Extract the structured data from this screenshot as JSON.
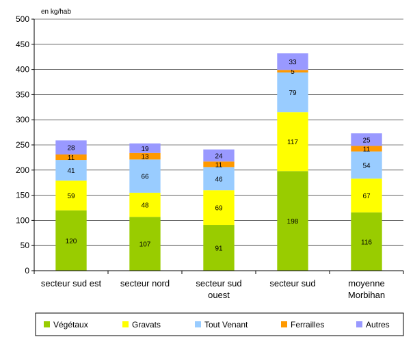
{
  "chart_data": {
    "type": "bar",
    "stacked": true,
    "unit_label": "en kg/hab",
    "categories": [
      [
        "secteur sud est"
      ],
      [
        "secteur nord"
      ],
      [
        "secteur sud",
        "ouest"
      ],
      [
        "secteur sud"
      ],
      [
        "moyenne",
        "Morbihan"
      ]
    ],
    "ylim": [
      0,
      500
    ],
    "yticks": [
      0,
      50,
      100,
      150,
      200,
      250,
      300,
      350,
      400,
      450,
      500
    ],
    "grid": true,
    "legend_position": "bottom",
    "series": [
      {
        "name": "Végétaux",
        "color": "#99cc00",
        "values": [
          120,
          107,
          91,
          198,
          116
        ]
      },
      {
        "name": "Gravats",
        "color": "#ffff00",
        "values": [
          59,
          48,
          69,
          117,
          67
        ]
      },
      {
        "name": "Tout Venant",
        "color": "#99ccff",
        "values": [
          41,
          66,
          46,
          79,
          54
        ]
      },
      {
        "name": "Ferrailles",
        "color": "#ff9900",
        "values": [
          11,
          13,
          11,
          5,
          11
        ]
      },
      {
        "name": "Autres",
        "color": "#9999ff",
        "values": [
          28,
          19,
          24,
          33,
          25
        ]
      }
    ]
  }
}
